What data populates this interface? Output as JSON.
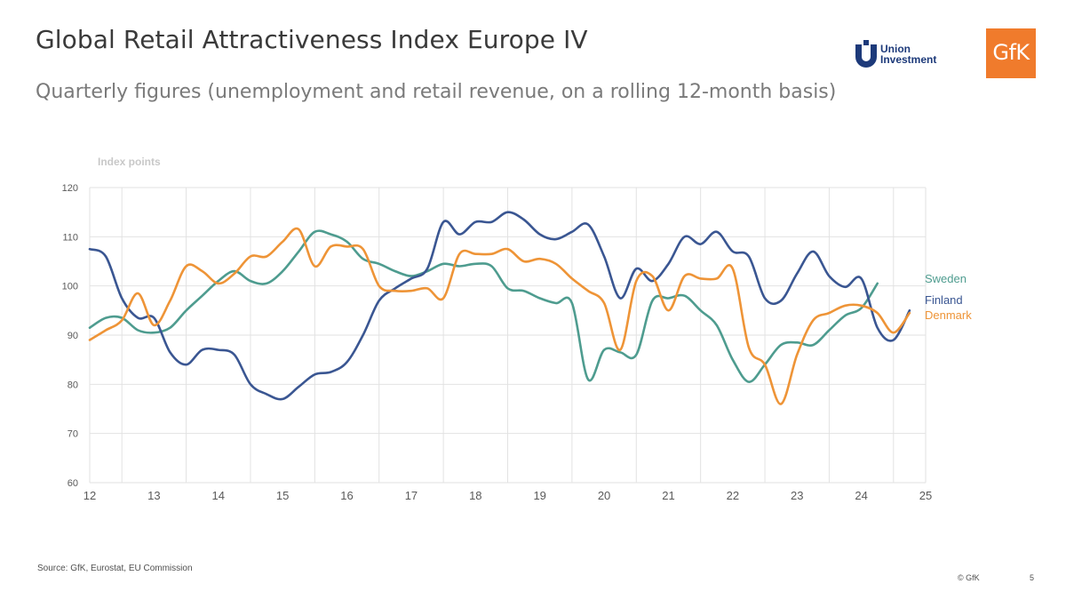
{
  "header": {
    "title": "Global Retail Attractiveness Index Europe IV",
    "subtitle": "Quarterly figures (unemployment and retail revenue, on a rolling 12-month basis)"
  },
  "logos": {
    "union_investment_line1": "Union",
    "union_investment_line2": "Investment",
    "gfk": "GfK"
  },
  "footer": {
    "source": "Source: GfK, Eurostat, EU Commission",
    "copyright": "© GfK",
    "page_number": "5"
  },
  "colors": {
    "sweden": "#4e9c8f",
    "finland": "#3a5692",
    "denmark": "#ee9437",
    "grid": "#e2e2e2",
    "axis_text": "#5a5a5a",
    "gfk_orange": "#f07b2c",
    "union_blue": "#1d3a7a"
  },
  "chart_data": {
    "type": "line",
    "ylabel": "Index points",
    "ylim": [
      60,
      120
    ],
    "yticks": [
      60,
      70,
      80,
      90,
      100,
      110,
      120
    ],
    "x_range": [
      12,
      25
    ],
    "xticks": [
      "12",
      "13",
      "14",
      "15",
      "16",
      "17",
      "18",
      "19",
      "20",
      "21",
      "22",
      "23",
      "24",
      "25"
    ],
    "grid": true,
    "legend": "end-of-line labels",
    "series": [
      {
        "name": "Sweden",
        "color": "#4e9c8f",
        "points": [
          [
            12.0,
            91.5
          ],
          [
            12.25,
            93.5
          ],
          [
            12.5,
            93.5
          ],
          [
            12.75,
            91.0
          ],
          [
            13.0,
            90.5
          ],
          [
            13.25,
            91.5
          ],
          [
            13.5,
            95.0
          ],
          [
            13.75,
            98.0
          ],
          [
            14.0,
            101.0
          ],
          [
            14.25,
            103.0
          ],
          [
            14.5,
            101.0
          ],
          [
            14.75,
            100.5
          ],
          [
            15.0,
            103.0
          ],
          [
            15.25,
            107.0
          ],
          [
            15.5,
            111.0
          ],
          [
            15.75,
            110.5
          ],
          [
            16.0,
            109.0
          ],
          [
            16.25,
            105.5
          ],
          [
            16.5,
            104.5
          ],
          [
            16.75,
            103.0
          ],
          [
            17.0,
            102.0
          ],
          [
            17.25,
            103.0
          ],
          [
            17.5,
            104.5
          ],
          [
            17.75,
            104.0
          ],
          [
            18.0,
            104.5
          ],
          [
            18.25,
            104.0
          ],
          [
            18.5,
            99.5
          ],
          [
            18.75,
            99.0
          ],
          [
            19.0,
            97.5
          ],
          [
            19.25,
            96.5
          ],
          [
            19.5,
            96.5
          ],
          [
            19.75,
            81.0
          ],
          [
            20.0,
            87.0
          ],
          [
            20.25,
            86.5
          ],
          [
            20.5,
            86.0
          ],
          [
            20.75,
            97.0
          ],
          [
            21.0,
            97.5
          ],
          [
            21.25,
            98.0
          ],
          [
            21.5,
            95.0
          ],
          [
            21.75,
            92.0
          ],
          [
            22.0,
            85.0
          ],
          [
            22.25,
            80.5
          ],
          [
            22.5,
            84.0
          ],
          [
            22.75,
            88.0
          ],
          [
            23.0,
            88.5
          ],
          [
            23.25,
            88.0
          ],
          [
            23.5,
            91.0
          ],
          [
            23.75,
            94.0
          ],
          [
            24.0,
            95.5
          ],
          [
            24.25,
            100.5
          ]
        ]
      },
      {
        "name": "Finland",
        "color": "#3a5692",
        "points": [
          [
            12.0,
            107.5
          ],
          [
            12.25,
            106.0
          ],
          [
            12.5,
            97.5
          ],
          [
            12.75,
            93.5
          ],
          [
            13.0,
            93.5
          ],
          [
            13.25,
            86.5
          ],
          [
            13.5,
            84.0
          ],
          [
            13.75,
            87.0
          ],
          [
            14.0,
            87.0
          ],
          [
            14.25,
            86.0
          ],
          [
            14.5,
            80.0
          ],
          [
            14.75,
            78.0
          ],
          [
            15.0,
            77.0
          ],
          [
            15.25,
            79.5
          ],
          [
            15.5,
            82.0
          ],
          [
            15.75,
            82.5
          ],
          [
            16.0,
            84.5
          ],
          [
            16.25,
            90.0
          ],
          [
            16.5,
            97.0
          ],
          [
            16.75,
            99.5
          ],
          [
            17.0,
            101.5
          ],
          [
            17.25,
            103.5
          ],
          [
            17.5,
            113.0
          ],
          [
            17.75,
            110.5
          ],
          [
            18.0,
            113.0
          ],
          [
            18.25,
            113.0
          ],
          [
            18.5,
            115.0
          ],
          [
            18.75,
            113.5
          ],
          [
            19.0,
            110.5
          ],
          [
            19.25,
            109.5
          ],
          [
            19.5,
            111.0
          ],
          [
            19.75,
            112.5
          ],
          [
            20.0,
            106.0
          ],
          [
            20.25,
            97.5
          ],
          [
            20.5,
            103.5
          ],
          [
            20.75,
            101.0
          ],
          [
            21.0,
            104.5
          ],
          [
            21.25,
            110.0
          ],
          [
            21.5,
            108.5
          ],
          [
            21.75,
            111.0
          ],
          [
            22.0,
            107.0
          ],
          [
            22.25,
            106.0
          ],
          [
            22.5,
            97.5
          ],
          [
            22.75,
            97.0
          ],
          [
            23.0,
            102.5
          ],
          [
            23.25,
            107.0
          ],
          [
            23.5,
            102.0
          ],
          [
            23.75,
            99.8
          ],
          [
            24.0,
            101.5
          ],
          [
            24.25,
            91.5
          ],
          [
            24.5,
            89.0
          ],
          [
            24.75,
            95.0
          ]
        ]
      },
      {
        "name": "Denmark",
        "color": "#ee9437",
        "points": [
          [
            12.0,
            89.0
          ],
          [
            12.25,
            91.0
          ],
          [
            12.5,
            93.0
          ],
          [
            12.75,
            98.5
          ],
          [
            13.0,
            92.0
          ],
          [
            13.25,
            97.0
          ],
          [
            13.5,
            104.0
          ],
          [
            13.75,
            103.0
          ],
          [
            14.0,
            100.5
          ],
          [
            14.25,
            102.5
          ],
          [
            14.5,
            106.0
          ],
          [
            14.75,
            106.0
          ],
          [
            15.0,
            109.0
          ],
          [
            15.25,
            111.5
          ],
          [
            15.5,
            104.0
          ],
          [
            15.75,
            108.0
          ],
          [
            16.0,
            108.0
          ],
          [
            16.25,
            107.5
          ],
          [
            16.5,
            100.0
          ],
          [
            16.75,
            99.0
          ],
          [
            17.0,
            99.0
          ],
          [
            17.25,
            99.5
          ],
          [
            17.5,
            97.5
          ],
          [
            17.75,
            106.5
          ],
          [
            18.0,
            106.5
          ],
          [
            18.25,
            106.5
          ],
          [
            18.5,
            107.5
          ],
          [
            18.75,
            105.0
          ],
          [
            19.0,
            105.5
          ],
          [
            19.25,
            104.5
          ],
          [
            19.5,
            101.5
          ],
          [
            19.75,
            99.0
          ],
          [
            20.0,
            96.5
          ],
          [
            20.25,
            87.0
          ],
          [
            20.5,
            101.0
          ],
          [
            20.75,
            102.0
          ],
          [
            21.0,
            95.0
          ],
          [
            21.25,
            102.0
          ],
          [
            21.5,
            101.5
          ],
          [
            21.75,
            101.5
          ],
          [
            22.0,
            103.5
          ],
          [
            22.25,
            87.5
          ],
          [
            22.5,
            84.0
          ],
          [
            22.75,
            76.0
          ],
          [
            23.0,
            86.0
          ],
          [
            23.25,
            93.0
          ],
          [
            23.5,
            94.5
          ],
          [
            23.75,
            96.0
          ],
          [
            24.0,
            96.0
          ],
          [
            24.25,
            94.5
          ],
          [
            24.5,
            90.5
          ],
          [
            24.75,
            94.5
          ]
        ]
      }
    ]
  }
}
